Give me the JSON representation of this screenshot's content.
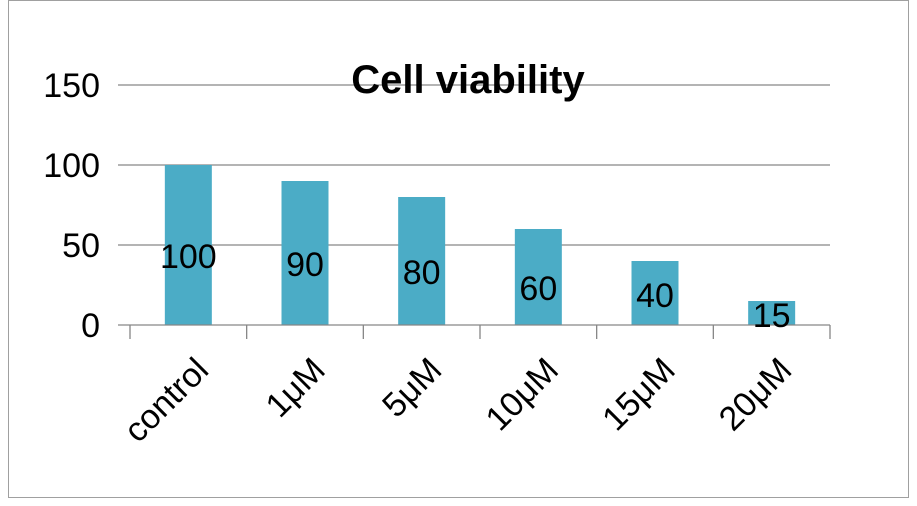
{
  "chart_data": {
    "type": "bar",
    "title": "Cell viability",
    "categories": [
      "control",
      "1μM",
      "5μM",
      "10μM",
      "15μM",
      "20μM"
    ],
    "values": [
      100,
      90,
      80,
      60,
      40,
      15
    ],
    "data_labels": [
      "100",
      "90",
      "80",
      "60",
      "40",
      "15"
    ],
    "xlabel": "",
    "ylabel": "",
    "ylim": [
      0,
      150
    ],
    "yticks": [
      0,
      50,
      100,
      150
    ],
    "ytick_labels": [
      "0",
      "50",
      "100",
      "150"
    ],
    "grid": true,
    "bar_color": "#4BACC6",
    "gridline_color": "#868686"
  }
}
